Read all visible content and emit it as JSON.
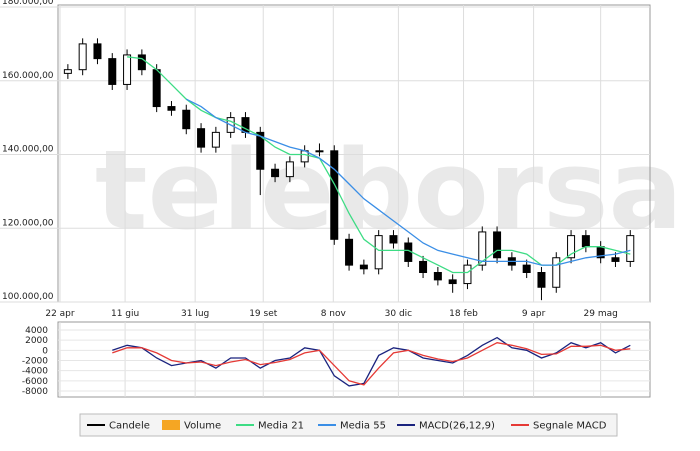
{
  "watermark": "teleborsa",
  "chart_data": [
    {
      "type": "candlestick",
      "candle_name": "Candele",
      "candle_color": "#000000",
      "volume": {
        "name": "Volume",
        "color": "#f5a623"
      },
      "x": [
        1,
        2.5,
        4,
        5.5,
        7,
        8.5,
        10,
        11.5,
        13,
        14.5,
        16,
        17.5,
        19,
        20.5,
        22,
        23.5,
        25,
        26.5,
        28,
        29.5,
        31,
        32.5,
        34,
        35.5,
        37,
        38.5,
        40,
        41.5,
        43,
        44.5,
        46,
        47.5,
        49,
        50.5,
        52,
        53.5,
        55,
        56.5,
        58
      ],
      "open": [
        162000,
        163000,
        170000,
        166000,
        159000,
        167000,
        163000,
        153000,
        152000,
        147000,
        142000,
        146000,
        150000,
        146000,
        136000,
        134000,
        138000,
        141000,
        141000,
        117000,
        110000,
        109000,
        118000,
        116000,
        111000,
        108000,
        106000,
        105000,
        110000,
        119000,
        112000,
        110000,
        108000,
        104000,
        112000,
        118000,
        115000,
        112000,
        111000
      ],
      "high": [
        164500,
        171500,
        171500,
        167500,
        168500,
        168500,
        164500,
        154500,
        153500,
        148500,
        147500,
        151500,
        151500,
        147500,
        137500,
        139500,
        142500,
        143000,
        142500,
        118500,
        111500,
        119500,
        119500,
        117500,
        112500,
        109500,
        107500,
        111500,
        120500,
        120500,
        113500,
        111500,
        109500,
        113500,
        119500,
        119500,
        116500,
        113500,
        119500
      ],
      "low": [
        160500,
        161500,
        164500,
        157500,
        157500,
        161500,
        151500,
        150500,
        145500,
        140500,
        140500,
        144500,
        144500,
        129000,
        132500,
        132500,
        136500,
        139500,
        115500,
        108500,
        107500,
        107500,
        114500,
        109500,
        106500,
        104500,
        102500,
        103500,
        108500,
        110500,
        108500,
        106500,
        100500,
        102500,
        110500,
        113500,
        110500,
        109500,
        109500
      ],
      "close": [
        163000,
        170000,
        166000,
        159000,
        167000,
        163000,
        153000,
        152000,
        147000,
        142000,
        146000,
        150000,
        146000,
        136000,
        134000,
        138000,
        141000,
        141000,
        117000,
        110000,
        109000,
        118000,
        116000,
        111000,
        108000,
        106000,
        105000,
        110000,
        119000,
        112000,
        110000,
        108000,
        104000,
        112000,
        118000,
        115000,
        112000,
        111000,
        118000
      ],
      "series": [
        {
          "name": "Media 21",
          "color": "#3ddc84",
          "values": [
            null,
            null,
            null,
            null,
            166500,
            166000,
            163000,
            159000,
            155000,
            152000,
            150000,
            149000,
            147000,
            145000,
            142000,
            140000,
            140000,
            139000,
            132000,
            124000,
            117000,
            114000,
            114000,
            114000,
            112000,
            110000,
            108000,
            108000,
            111000,
            114000,
            114000,
            113000,
            110000,
            110000,
            113000,
            115000,
            115000,
            114000,
            113000
          ]
        },
        {
          "name": "Media 55",
          "color": "#3a8ee6",
          "values": [
            null,
            null,
            null,
            null,
            null,
            null,
            null,
            null,
            155000,
            153000,
            150000,
            148000,
            146000,
            145000,
            143500,
            142000,
            141000,
            139000,
            136000,
            132000,
            128000,
            125000,
            122000,
            119000,
            116000,
            114000,
            113000,
            112000,
            111000,
            111000,
            111000,
            111000,
            110000,
            110000,
            111000,
            112000,
            112500,
            113000,
            114000
          ]
        }
      ],
      "xlim": [
        0,
        60
      ],
      "xticks": [
        {
          "value": 0.2,
          "label": "22 apr"
        },
        {
          "value": 6.8,
          "label": "11 giu"
        },
        {
          "value": 13.9,
          "label": "31 lug"
        },
        {
          "value": 20.8,
          "label": "19 set"
        },
        {
          "value": 27.9,
          "label": "8 nov"
        },
        {
          "value": 34.5,
          "label": "30 dic"
        },
        {
          "value": 41.1,
          "label": "18 feb"
        },
        {
          "value": 48.2,
          "label": "9 apr"
        },
        {
          "value": 55,
          "label": "29 mag"
        }
      ],
      "ylim": [
        100000,
        180000
      ],
      "yticks": [
        {
          "value": 100000,
          "label": "100.000,00"
        },
        {
          "value": 120000,
          "label": "120.000,00"
        },
        {
          "value": 140000,
          "label": "140.000,00"
        },
        {
          "value": 160000,
          "label": "160.000,00"
        },
        {
          "value": 180000,
          "label": "180.000,00"
        }
      ],
      "grid": true
    },
    {
      "type": "line",
      "x": [
        1,
        2.5,
        4,
        5.5,
        7,
        8.5,
        10,
        11.5,
        13,
        14.5,
        16,
        17.5,
        19,
        20.5,
        22,
        23.5,
        25,
        26.5,
        28,
        29.5,
        31,
        32.5,
        34,
        35.5,
        37,
        38.5,
        40,
        41.5,
        43,
        44.5,
        46,
        47.5,
        49,
        50.5,
        52,
        53.5,
        55,
        56.5,
        58
      ],
      "series": [
        {
          "name": "MACD(26,12,9)",
          "color": "#1a237e",
          "values": [
            null,
            null,
            null,
            0,
            1000,
            500,
            -1500,
            -3000,
            -2500,
            -2000,
            -3500,
            -1500,
            -1500,
            -3500,
            -2000,
            -1500,
            500,
            0,
            -5000,
            -7000,
            -6500,
            -1000,
            500,
            0,
            -1500,
            -2000,
            -2500,
            -1000,
            1000,
            2500,
            500,
            0,
            -1500,
            -500,
            1500,
            500,
            1500,
            -500,
            1000
          ]
        },
        {
          "name": "Segnale MACD",
          "color": "#e53935",
          "values": [
            null,
            null,
            null,
            -500,
            500,
            500,
            -500,
            -2000,
            -2500,
            -2300,
            -3000,
            -2300,
            -1800,
            -2800,
            -2400,
            -1800,
            -500,
            0,
            -3000,
            -6000,
            -6800,
            -3500,
            -500,
            0,
            -1000,
            -1700,
            -2200,
            -1500,
            0,
            1500,
            1000,
            300,
            -800,
            -700,
            800,
            800,
            1000,
            0,
            300
          ]
        }
      ],
      "xlim": [
        0,
        60
      ],
      "ylim": [
        -8000,
        4000
      ],
      "yticks": [
        -8000,
        -6000,
        -4000,
        -2000,
        0,
        2000,
        4000
      ],
      "grid": true
    }
  ]
}
